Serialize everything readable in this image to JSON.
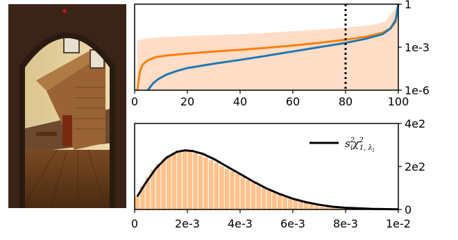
{
  "scene_image": {
    "description_icon": "staircase-room-photo-icon",
    "marker_color": "#e01010"
  },
  "chart_data": [
    {
      "type": "line",
      "yscale": "log",
      "xlim": [
        0,
        100
      ],
      "ylim": [
        1e-06,
        1
      ],
      "xticks": [
        "0",
        "20",
        "40",
        "60",
        "80",
        "100"
      ],
      "xtick_values": [
        0,
        20,
        40,
        60,
        80,
        100
      ],
      "yticks": [
        "1e-6",
        "1e-3",
        "1"
      ],
      "ytick_values": [
        1e-06,
        0.001,
        1
      ],
      "grid": false,
      "colors": {
        "orange": "#ff7f0e",
        "blue": "#1f77b4",
        "band": "#ffd7bd"
      },
      "vline_x": 80,
      "series": [
        {
          "x": [
            1,
            2,
            3,
            5,
            8,
            12,
            20,
            30,
            40,
            50,
            60,
            70,
            80,
            88,
            94,
            97,
            99,
            100
          ],
          "values": [
            1e-06,
            2e-05,
            6e-05,
            0.00012,
            0.0002,
            0.00026,
            0.00036,
            0.0005,
            0.00065,
            0.0009,
            0.0013,
            0.002,
            0.0033,
            0.0055,
            0.01,
            0.02,
            0.06,
            1
          ]
        },
        {
          "x": [
            5,
            7,
            9,
            12,
            16,
            20,
            30,
            40,
            50,
            60,
            70,
            80,
            88,
            94,
            97,
            99,
            100
          ],
          "values": [
            1e-06,
            3e-06,
            6e-06,
            1.2e-05,
            2.2e-05,
            3.5e-05,
            7e-05,
            0.00013,
            0.00025,
            0.0005,
            0.001,
            0.002,
            0.004,
            0.008,
            0.02,
            0.08,
            1
          ]
        }
      ],
      "band": {
        "x": [
          1,
          5,
          10,
          20,
          30,
          40,
          50,
          60,
          70,
          80,
          90,
          95,
          100
        ],
        "upper": [
          0.003,
          0.004,
          0.005,
          0.006,
          0.007,
          0.008,
          0.01,
          0.013,
          0.017,
          0.023,
          0.035,
          0.06,
          1
        ],
        "lower": [
          1e-06,
          1e-06,
          1e-06,
          1e-06,
          1e-06,
          1e-06,
          1e-06,
          1e-06,
          1e-06,
          1e-06,
          1e-06,
          1e-06,
          1e-06
        ]
      }
    },
    {
      "type": "bar",
      "xlim": [
        0,
        0.01
      ],
      "ylim": [
        0,
        400
      ],
      "xticks": [
        "0",
        "2e-3",
        "4e-3",
        "6e-3",
        "8e-3",
        "1e-2"
      ],
      "xtick_values": [
        0,
        0.002,
        0.004,
        0.006,
        0.008,
        0.01
      ],
      "yticks": [
        "0",
        "2e2",
        "4e2"
      ],
      "ytick_values": [
        0,
        200,
        400
      ],
      "grid": false,
      "legend": {
        "label": "s_i^2 χ^2_{1,λ_i}",
        "placement": "top-right",
        "main": "s",
        "sup1": "2",
        "sub1": "i",
        "chi": "χ",
        "sup2": "2",
        "sub2": "1, λ",
        "sub3": "i"
      },
      "bar_color": "#ffbb7f",
      "bin_width": 0.0002,
      "values": [
        60,
        110,
        150,
        185,
        210,
        235,
        250,
        262,
        270,
        275,
        268,
        262,
        252,
        242,
        230,
        218,
        202,
        190,
        178,
        165,
        150,
        138,
        125,
        112,
        100,
        88,
        78,
        68,
        58,
        50,
        42,
        35,
        29,
        23,
        18,
        14,
        11,
        8,
        6,
        4,
        3,
        2,
        2,
        1,
        1,
        1,
        0,
        0,
        0,
        0
      ],
      "curve": {
        "x": [
          0.0001,
          0.0004,
          0.0008,
          0.0012,
          0.0016,
          0.0019,
          0.0022,
          0.0026,
          0.003,
          0.0035,
          0.004,
          0.0045,
          0.005,
          0.0055,
          0.006,
          0.0065,
          0.007,
          0.0075,
          0.008,
          0.009,
          0.01
        ],
        "y": [
          60,
          120,
          190,
          240,
          268,
          275,
          272,
          258,
          235,
          200,
          165,
          130,
          98,
          72,
          50,
          34,
          22,
          13,
          8,
          3,
          1
        ]
      }
    }
  ]
}
